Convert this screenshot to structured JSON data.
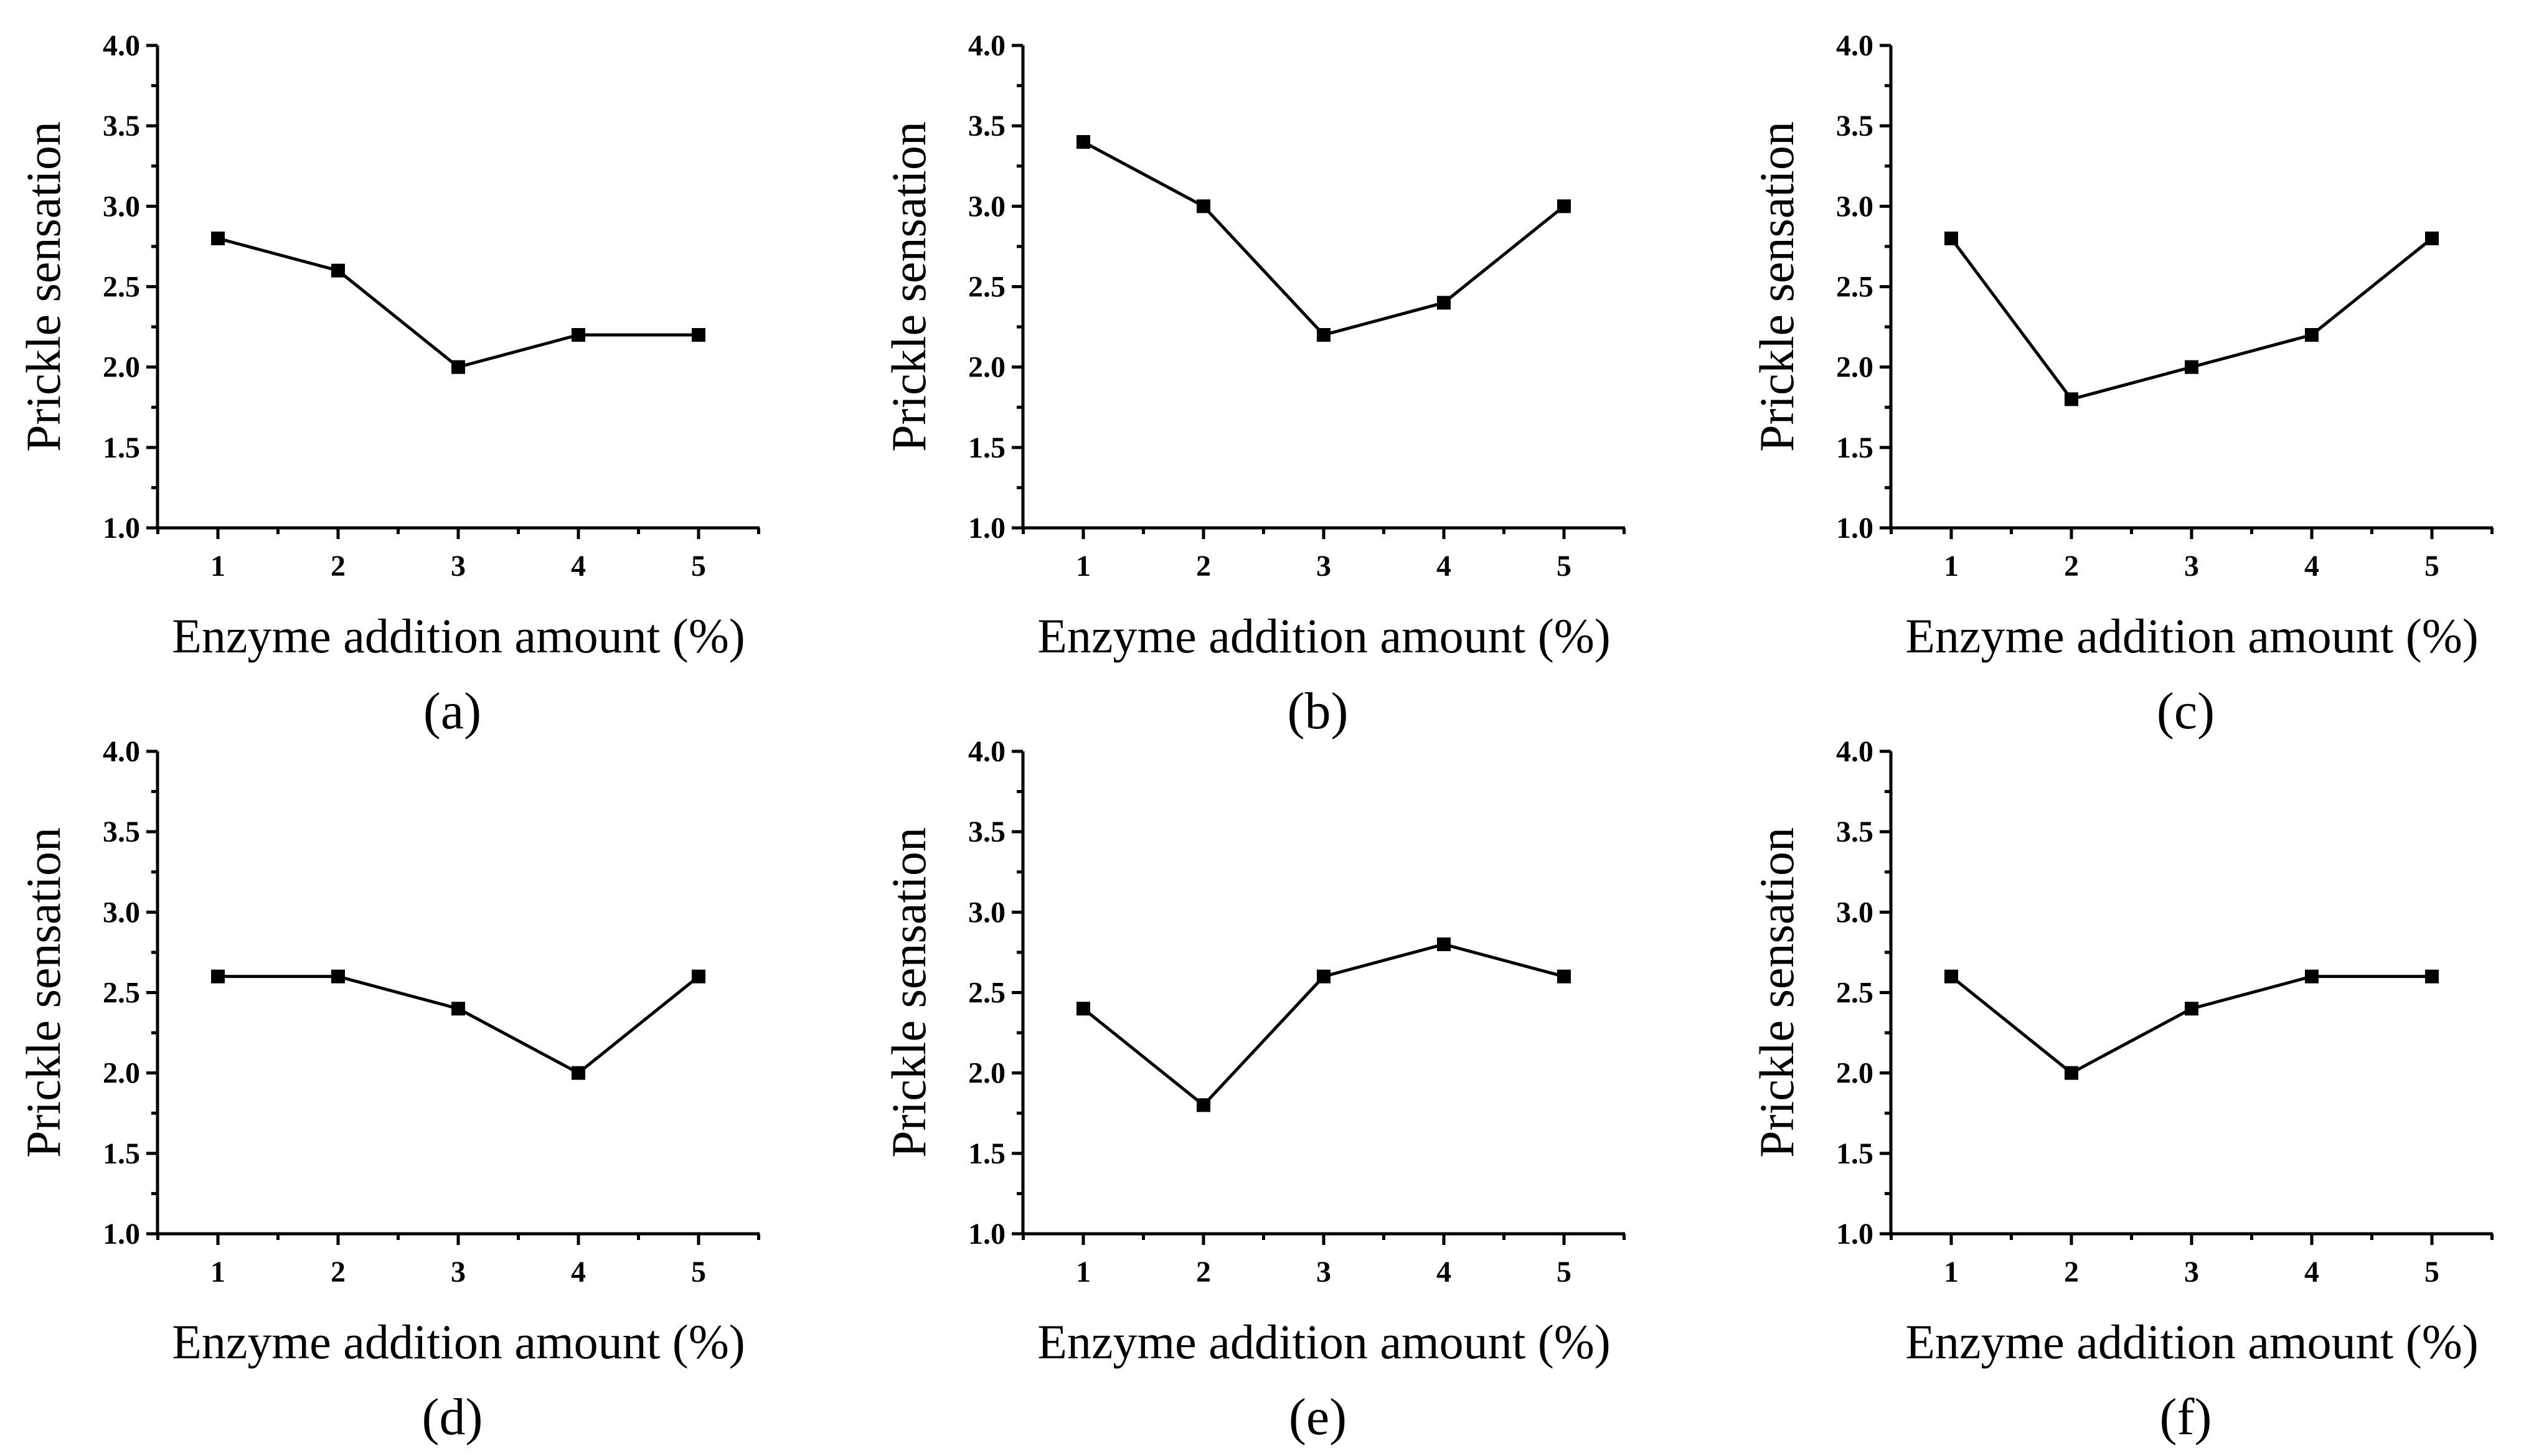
{
  "figure": {
    "panels": [
      "(a)",
      "(b)",
      "(c)",
      "(d)",
      "(e)",
      "(f)"
    ]
  },
  "chart_data": [
    {
      "type": "line",
      "panel_label": "(a)",
      "xlabel": "Enzyme addition amount (%)",
      "ylabel": "Prickle sensation",
      "categories": [
        "1",
        "2",
        "3",
        "4",
        "5"
      ],
      "x": [
        1,
        2,
        3,
        4,
        5
      ],
      "values": [
        2.8,
        2.6,
        2.0,
        2.2,
        2.2
      ],
      "yticks": [
        "1.0",
        "1.5",
        "2.0",
        "2.5",
        "3.0",
        "3.5",
        "4.0"
      ],
      "ylim": [
        1.0,
        4.0
      ],
      "marker": "square",
      "grid": false
    },
    {
      "type": "line",
      "panel_label": "(b)",
      "xlabel": "Enzyme addition amount (%)",
      "ylabel": "Prickle sensation",
      "categories": [
        "1",
        "2",
        "3",
        "4",
        "5"
      ],
      "x": [
        1,
        2,
        3,
        4,
        5
      ],
      "values": [
        3.4,
        3.0,
        2.2,
        2.4,
        3.0
      ],
      "yticks": [
        "1.0",
        "1.5",
        "2.0",
        "2.5",
        "3.0",
        "3.5",
        "4.0"
      ],
      "ylim": [
        1.0,
        4.0
      ],
      "marker": "square",
      "grid": false
    },
    {
      "type": "line",
      "panel_label": "(c)",
      "xlabel": "Enzyme addition amount (%)",
      "ylabel": "Prickle sensation",
      "categories": [
        "1",
        "2",
        "3",
        "4",
        "5"
      ],
      "x": [
        1,
        2,
        3,
        4,
        5
      ],
      "values": [
        2.8,
        1.8,
        2.0,
        2.2,
        2.8
      ],
      "yticks": [
        "1.0",
        "1.5",
        "2.0",
        "2.5",
        "3.0",
        "3.5",
        "4.0"
      ],
      "ylim": [
        1.0,
        4.0
      ],
      "marker": "square",
      "grid": false
    },
    {
      "type": "line",
      "panel_label": "(d)",
      "xlabel": "Enzyme addition amount (%)",
      "ylabel": "Prickle sensation",
      "categories": [
        "1",
        "2",
        "3",
        "4",
        "5"
      ],
      "x": [
        1,
        2,
        3,
        4,
        5
      ],
      "values": [
        2.6,
        2.6,
        2.4,
        2.0,
        2.6
      ],
      "yticks": [
        "1.0",
        "1.5",
        "2.0",
        "2.5",
        "3.0",
        "3.5",
        "4.0"
      ],
      "ylim": [
        1.0,
        4.0
      ],
      "marker": "square",
      "grid": false
    },
    {
      "type": "line",
      "panel_label": "(e)",
      "xlabel": "Enzyme addition amount (%)",
      "ylabel": "Prickle sensation",
      "categories": [
        "1",
        "2",
        "3",
        "4",
        "5"
      ],
      "x": [
        1,
        2,
        3,
        4,
        5
      ],
      "values": [
        2.4,
        1.8,
        2.6,
        2.8,
        2.6
      ],
      "yticks": [
        "1.0",
        "1.5",
        "2.0",
        "2.5",
        "3.0",
        "3.5",
        "4.0"
      ],
      "ylim": [
        1.0,
        4.0
      ],
      "marker": "square",
      "grid": false
    },
    {
      "type": "line",
      "panel_label": "(f)",
      "xlabel": "Enzyme addition amount (%)",
      "ylabel": "Prickle sensation",
      "categories": [
        "1",
        "2",
        "3",
        "4",
        "5"
      ],
      "x": [
        1,
        2,
        3,
        4,
        5
      ],
      "values": [
        2.6,
        2.0,
        2.4,
        2.6,
        2.6
      ],
      "yticks": [
        "1.0",
        "1.5",
        "2.0",
        "2.5",
        "3.0",
        "3.5",
        "4.0"
      ],
      "ylim": [
        1.0,
        4.0
      ],
      "marker": "square",
      "grid": false
    }
  ]
}
